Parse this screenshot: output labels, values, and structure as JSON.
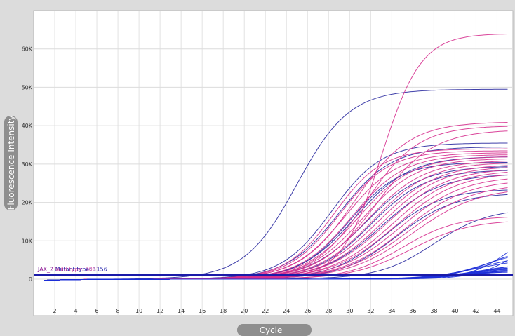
{
  "chart_data": {
    "type": "line",
    "title": "",
    "xlabel": "Cycle",
    "ylabel": "Fluorescence Intensity",
    "xlim": [
      0,
      45.5
    ],
    "ylim": [
      -9500,
      70000
    ],
    "x_ticks": [
      2,
      4,
      6,
      8,
      10,
      12,
      14,
      16,
      18,
      20,
      22,
      24,
      26,
      28,
      30,
      32,
      34,
      36,
      38,
      40,
      42,
      44
    ],
    "x_tick_labels": [
      "2",
      "4",
      "6",
      "8",
      "10",
      "12",
      "14",
      "16",
      "18",
      "20",
      "22",
      "24",
      "26",
      "28",
      "30",
      "32",
      "34",
      "36",
      "38",
      "40",
      "42",
      "44"
    ],
    "y_ticks": [
      0,
      10000,
      20000,
      30000,
      40000,
      50000,
      60000
    ],
    "y_tick_labels": [
      "0",
      "10K",
      "20K",
      "30K",
      "40K",
      "50K",
      "60K"
    ],
    "grid": true,
    "threshold": {
      "value": 1200,
      "labels": [
        {
          "text": "JAK_2 Mutant type: 1156",
          "color": "#1a1aa8"
        },
        {
          "text": "JAK_2 Wild type: 1061",
          "color": "#cc3399"
        }
      ],
      "color": "#1a1aa8"
    },
    "colors": {
      "mutant": "#2a2aa0",
      "wild": "#d6308f",
      "low": "#1c2fd8"
    },
    "curves": [
      {
        "group": "mutant",
        "plateau": 49500,
        "midpoint": 25.0,
        "slope": 2.5
      },
      {
        "group": "mutant",
        "plateau": 35500,
        "midpoint": 28.3,
        "slope": 2.4
      },
      {
        "group": "mutant",
        "plateau": 34500,
        "midpoint": 29.0,
        "slope": 2.5
      },
      {
        "group": "mutant",
        "plateau": 32000,
        "midpoint": 30.5,
        "slope": 2.6
      },
      {
        "group": "mutant",
        "plateau": 30500,
        "midpoint": 30.0,
        "slope": 2.4
      },
      {
        "group": "mutant",
        "plateau": 29500,
        "midpoint": 31.5,
        "slope": 2.7
      },
      {
        "group": "mutant",
        "plateau": 28500,
        "midpoint": 32.0,
        "slope": 2.6
      },
      {
        "group": "mutant",
        "plateau": 27500,
        "midpoint": 33.0,
        "slope": 2.8
      },
      {
        "group": "mutant",
        "plateau": 23500,
        "midpoint": 33.5,
        "slope": 2.6
      },
      {
        "group": "mutant",
        "plateau": 22500,
        "midpoint": 34.5,
        "slope": 2.7
      },
      {
        "group": "mutant",
        "plateau": 18500,
        "midpoint": 38.0,
        "slope": 2.6
      },
      {
        "group": "wild",
        "plateau": 64000,
        "midpoint": 33.0,
        "slope": 1.9
      },
      {
        "group": "wild",
        "plateau": 41000,
        "midpoint": 30.5,
        "slope": 2.6
      },
      {
        "group": "wild",
        "plateau": 40000,
        "midpoint": 31.5,
        "slope": 2.5
      },
      {
        "group": "wild",
        "plateau": 39000,
        "midpoint": 32.5,
        "slope": 2.7
      },
      {
        "group": "wild",
        "plateau": 34000,
        "midpoint": 28.5,
        "slope": 2.3
      },
      {
        "group": "wild",
        "plateau": 33500,
        "midpoint": 29.0,
        "slope": 2.4
      },
      {
        "group": "wild",
        "plateau": 33000,
        "midpoint": 29.6,
        "slope": 2.5
      },
      {
        "group": "wild",
        "plateau": 32500,
        "midpoint": 30.2,
        "slope": 2.5
      },
      {
        "group": "wild",
        "plateau": 32000,
        "midpoint": 30.8,
        "slope": 2.6
      },
      {
        "group": "wild",
        "plateau": 31500,
        "midpoint": 31.2,
        "slope": 2.6
      },
      {
        "group": "wild",
        "plateau": 31000,
        "midpoint": 31.7,
        "slope": 2.7
      },
      {
        "group": "wild",
        "plateau": 30500,
        "midpoint": 32.2,
        "slope": 2.7
      },
      {
        "group": "wild",
        "plateau": 30000,
        "midpoint": 32.7,
        "slope": 2.8
      },
      {
        "group": "wild",
        "plateau": 29500,
        "midpoint": 33.1,
        "slope": 2.8
      },
      {
        "group": "wild",
        "plateau": 29000,
        "midpoint": 33.5,
        "slope": 2.9
      },
      {
        "group": "wild",
        "plateau": 28500,
        "midpoint": 34.0,
        "slope": 2.9
      },
      {
        "group": "wild",
        "plateau": 28000,
        "midpoint": 34.4,
        "slope": 3.0
      },
      {
        "group": "wild",
        "plateau": 27000,
        "midpoint": 34.8,
        "slope": 3.0
      },
      {
        "group": "wild",
        "plateau": 26000,
        "midpoint": 35.2,
        "slope": 3.0
      },
      {
        "group": "wild",
        "plateau": 25000,
        "midpoint": 35.6,
        "slope": 3.1
      },
      {
        "group": "wild",
        "plateau": 24000,
        "midpoint": 36.0,
        "slope": 3.1
      },
      {
        "group": "wild",
        "plateau": 16500,
        "midpoint": 35.0,
        "slope": 2.6
      },
      {
        "group": "wild",
        "plateau": 15500,
        "midpoint": 35.8,
        "slope": 2.8
      },
      {
        "group": "low",
        "plateau": 16000,
        "midpoint": 45.5,
        "slope": 2.0
      },
      {
        "group": "low",
        "plateau": 13000,
        "midpoint": 46.0,
        "slope": 2.0
      },
      {
        "group": "low",
        "plateau": 9000,
        "midpoint": 43.5,
        "slope": 2.2
      },
      {
        "group": "low",
        "plateau": 8000,
        "midpoint": 43.0,
        "slope": 2.3
      },
      {
        "group": "low",
        "plateau": 6500,
        "midpoint": 42.5,
        "slope": 2.4
      },
      {
        "group": "low",
        "plateau": 5500,
        "midpoint": 42.0,
        "slope": 2.5
      },
      {
        "group": "low",
        "plateau": 5000,
        "midpoint": 43.5,
        "slope": 2.5
      },
      {
        "group": "low",
        "plateau": 4500,
        "midpoint": 42.5,
        "slope": 2.6
      },
      {
        "group": "low",
        "plateau": 4000,
        "midpoint": 43.0,
        "slope": 2.6
      },
      {
        "group": "low",
        "plateau": 3800,
        "midpoint": 42.0,
        "slope": 2.5
      },
      {
        "group": "low",
        "plateau": 3500,
        "midpoint": 41.5,
        "slope": 2.5
      },
      {
        "group": "low",
        "plateau": 3200,
        "midpoint": 42.5,
        "slope": 2.4
      },
      {
        "group": "low",
        "plateau": 3000,
        "midpoint": 41.0,
        "slope": 2.4
      },
      {
        "group": "low",
        "plateau": 2800,
        "midpoint": 42.0,
        "slope": 2.3
      },
      {
        "group": "low",
        "plateau": 2600,
        "midpoint": 41.5,
        "slope": 2.3
      },
      {
        "group": "low",
        "plateau": 2400,
        "midpoint": 40.5,
        "slope": 2.2
      },
      {
        "group": "low",
        "plateau": 2200,
        "midpoint": 41.0,
        "slope": 2.2
      },
      {
        "group": "low",
        "plateau": 2000,
        "midpoint": 40.0,
        "slope": 2.2
      }
    ]
  }
}
